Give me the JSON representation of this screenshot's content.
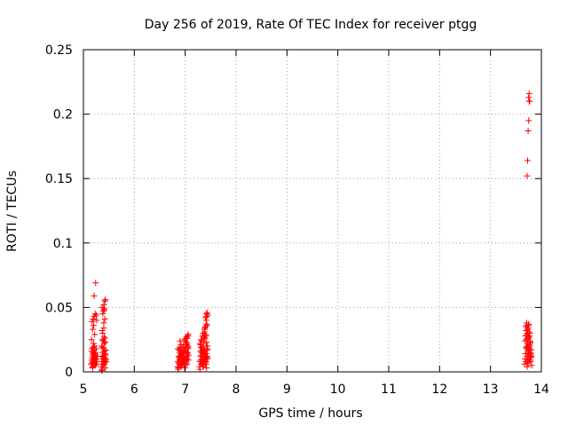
{
  "chart_data": {
    "type": "scatter",
    "title": "Day 256 of 2019, Rate Of TEC Index for receiver ptgg",
    "xlabel": "GPS time / hours",
    "ylabel": "ROTI / TECUs",
    "xlim": [
      5,
      14
    ],
    "ylim": [
      0,
      0.25
    ],
    "x_ticks": [
      "5",
      "6",
      "7",
      "8",
      "9",
      "10",
      "11",
      "12",
      "13",
      "14"
    ],
    "y_ticks": [
      "0",
      "0.05",
      "0.1",
      "0.15",
      "0.2",
      "0.25"
    ],
    "grid": true,
    "marker": "+",
    "color": "#ff0000",
    "x": [
      5.15,
      5.16,
      5.17,
      5.18,
      5.18,
      5.19,
      5.19,
      5.2,
      5.2,
      5.21,
      5.21,
      5.22,
      5.22,
      5.23,
      5.23,
      5.24,
      5.24,
      5.25,
      5.26,
      5.27,
      5.16,
      5.17,
      5.18,
      5.19,
      5.2,
      5.22,
      5.23,
      5.24,
      5.17,
      5.19,
      5.21,
      5.23,
      5.18,
      5.2,
      5.22,
      5.16,
      5.2,
      5.25,
      5.21,
      5.24,
      5.25,
      5.26,
      5.17,
      5.19,
      5.21,
      5.23,
      5.25,
      5.35,
      5.36,
      5.37,
      5.38,
      5.38,
      5.39,
      5.39,
      5.4,
      5.4,
      5.41,
      5.41,
      5.42,
      5.42,
      5.43,
      5.43,
      5.44,
      5.44,
      5.45,
      5.36,
      5.37,
      5.38,
      5.39,
      5.4,
      5.41,
      5.42,
      5.43,
      5.37,
      5.39,
      5.41,
      5.43,
      5.37,
      5.4,
      5.42,
      5.38,
      5.41,
      5.37,
      5.4,
      5.42,
      5.39,
      5.41,
      5.43,
      5.38,
      5.4,
      5.42,
      5.36,
      5.39,
      5.43,
      6.85,
      6.86,
      6.87,
      6.88,
      6.89,
      6.9,
      6.91,
      6.92,
      6.93,
      6.94,
      6.95,
      6.96,
      6.97,
      6.98,
      6.99,
      7.0,
      7.01,
      7.02,
      7.03,
      7.04,
      7.05,
      7.06,
      7.07,
      6.86,
      6.88,
      6.9,
      6.92,
      6.94,
      6.96,
      6.98,
      7.0,
      7.02,
      7.04,
      7.06,
      6.87,
      6.89,
      6.91,
      6.93,
      6.95,
      6.97,
      6.99,
      7.01,
      7.03,
      7.05,
      6.88,
      6.92,
      6.96,
      7.0,
      7.04,
      6.9,
      6.94,
      6.98,
      7.02,
      7.06,
      6.99,
      7.01,
      7.03,
      7.05,
      7.0,
      7.02,
      7.04,
      7.06,
      7.03,
      7.05,
      6.87,
      6.91,
      6.95,
      6.89,
      6.93,
      6.97,
      7.01,
      6.86,
      7.05,
      6.94,
      6.98,
      7.02,
      7.28,
      7.29,
      7.3,
      7.31,
      7.32,
      7.33,
      7.34,
      7.35,
      7.36,
      7.37,
      7.38,
      7.39,
      7.4,
      7.41,
      7.42,
      7.43,
      7.44,
      7.29,
      7.31,
      7.33,
      7.35,
      7.37,
      7.39,
      7.41,
      7.43,
      7.3,
      7.32,
      7.34,
      7.36,
      7.38,
      7.4,
      7.42,
      7.44,
      7.3,
      7.33,
      7.36,
      7.39,
      7.42,
      7.31,
      7.34,
      7.37,
      7.4,
      7.43,
      7.32,
      7.35,
      7.38,
      7.41,
      7.29,
      7.33,
      7.37,
      7.41,
      7.38,
      7.4,
      7.42,
      7.39,
      7.41,
      7.43,
      7.4,
      7.42,
      7.42,
      7.43,
      7.44,
      7.36,
      7.39,
      7.41,
      7.34,
      7.37,
      7.3,
      7.35,
      7.4,
      7.44,
      13.67,
      13.68,
      13.69,
      13.7,
      13.71,
      13.72,
      13.73,
      13.74,
      13.75,
      13.76,
      13.77,
      13.78,
      13.79,
      13.8,
      13.81,
      13.68,
      13.7,
      13.72,
      13.74,
      13.76,
      13.78,
      13.8,
      13.69,
      13.71,
      13.73,
      13.75,
      13.77,
      13.79,
      13.7,
      13.72,
      13.74,
      13.76,
      13.78,
      13.71,
      13.73,
      13.75,
      13.77,
      13.72,
      13.74,
      13.76,
      13.7,
      13.73,
      13.78,
      13.71,
      13.75,
      13.79,
      13.72,
      13.76,
      13.8,
      13.74,
      13.78,
      13.73,
      13.77,
      13.75,
      13.79,
      13.72,
      13.73,
      13.74,
      13.75,
      13.76,
      13.75,
      13.76,
      13.77
    ],
    "y": [
      0.006,
      0.009,
      0.011,
      0.013,
      0.004,
      0.008,
      0.015,
      0.01,
      0.005,
      0.012,
      0.017,
      0.007,
      0.014,
      0.009,
      0.011,
      0.006,
      0.013,
      0.01,
      0.008,
      0.012,
      0.016,
      0.018,
      0.003,
      0.019,
      0.014,
      0.02,
      0.005,
      0.015,
      0.039,
      0.041,
      0.043,
      0.045,
      0.033,
      0.036,
      0.029,
      0.025,
      0.022,
      0.018,
      0.059,
      0.069,
      0.044,
      0.04,
      0.007,
      0.011,
      0.009,
      0.013,
      0.006,
      0.004,
      0.008,
      0.012,
      0.006,
      0.015,
      0.01,
      0.018,
      0.005,
      0.013,
      0.009,
      0.016,
      0.007,
      0.011,
      0.014,
      0.003,
      0.01,
      0.017,
      0.008,
      0.02,
      0.002,
      0.019,
      0.012,
      0.006,
      0.022,
      0.014,
      0.009,
      0.025,
      0.024,
      0.027,
      0.023,
      0.032,
      0.038,
      0.041,
      0.045,
      0.048,
      0.05,
      0.052,
      0.055,
      0.047,
      0.049,
      0.056,
      0.03,
      0.034,
      0.026,
      0.001,
      0.011,
      0.013,
      0.004,
      0.008,
      0.012,
      0.006,
      0.015,
      0.01,
      0.018,
      0.005,
      0.013,
      0.009,
      0.016,
      0.007,
      0.011,
      0.014,
      0.003,
      0.01,
      0.017,
      0.008,
      0.012,
      0.006,
      0.015,
      0.009,
      0.013,
      0.002,
      0.011,
      0.019,
      0.004,
      0.014,
      0.008,
      0.016,
      0.006,
      0.012,
      0.01,
      0.018,
      0.003,
      0.009,
      0.013,
      0.007,
      0.015,
      0.011,
      0.005,
      0.019,
      0.014,
      0.02,
      0.017,
      0.021,
      0.02,
      0.018,
      0.022,
      0.024,
      0.016,
      0.012,
      0.023,
      0.02,
      0.025,
      0.026,
      0.027,
      0.028,
      0.024,
      0.022,
      0.026,
      0.029,
      0.021,
      0.019,
      0.007,
      0.005,
      0.009,
      0.012,
      0.01,
      0.014,
      0.016,
      0.018,
      0.015,
      0.006,
      0.008,
      0.011,
      0.004,
      0.008,
      0.012,
      0.006,
      0.015,
      0.01,
      0.018,
      0.005,
      0.013,
      0.009,
      0.016,
      0.007,
      0.011,
      0.014,
      0.003,
      0.01,
      0.017,
      0.002,
      0.019,
      0.007,
      0.014,
      0.011,
      0.016,
      0.006,
      0.012,
      0.009,
      0.013,
      0.017,
      0.004,
      0.015,
      0.008,
      0.012,
      0.02,
      0.021,
      0.024,
      0.022,
      0.026,
      0.023,
      0.025,
      0.028,
      0.027,
      0.029,
      0.018,
      0.019,
      0.03,
      0.031,
      0.02,
      0.022,
      0.024,
      0.026,
      0.028,
      0.033,
      0.035,
      0.037,
      0.034,
      0.04,
      0.036,
      0.042,
      0.045,
      0.043,
      0.046,
      0.044,
      0.014,
      0.01,
      0.008,
      0.006,
      0.018,
      0.016,
      0.009,
      0.012,
      0.011,
      0.006,
      0.01,
      0.014,
      0.008,
      0.018,
      0.012,
      0.022,
      0.007,
      0.016,
      0.011,
      0.02,
      0.009,
      0.013,
      0.017,
      0.005,
      0.024,
      0.019,
      0.026,
      0.015,
      0.021,
      0.023,
      0.012,
      0.028,
      0.025,
      0.03,
      0.027,
      0.018,
      0.014,
      0.032,
      0.029,
      0.034,
      0.031,
      0.024,
      0.036,
      0.033,
      0.037,
      0.028,
      0.02,
      0.017,
      0.013,
      0.035,
      0.01,
      0.008,
      0.038,
      0.026,
      0.015,
      0.004,
      0.009,
      0.012,
      0.019,
      0.022,
      0.007,
      0.03,
      0.036,
      0.011,
      0.152,
      0.164,
      0.187,
      0.195,
      0.21,
      0.213,
      0.216,
      0.21
    ]
  }
}
